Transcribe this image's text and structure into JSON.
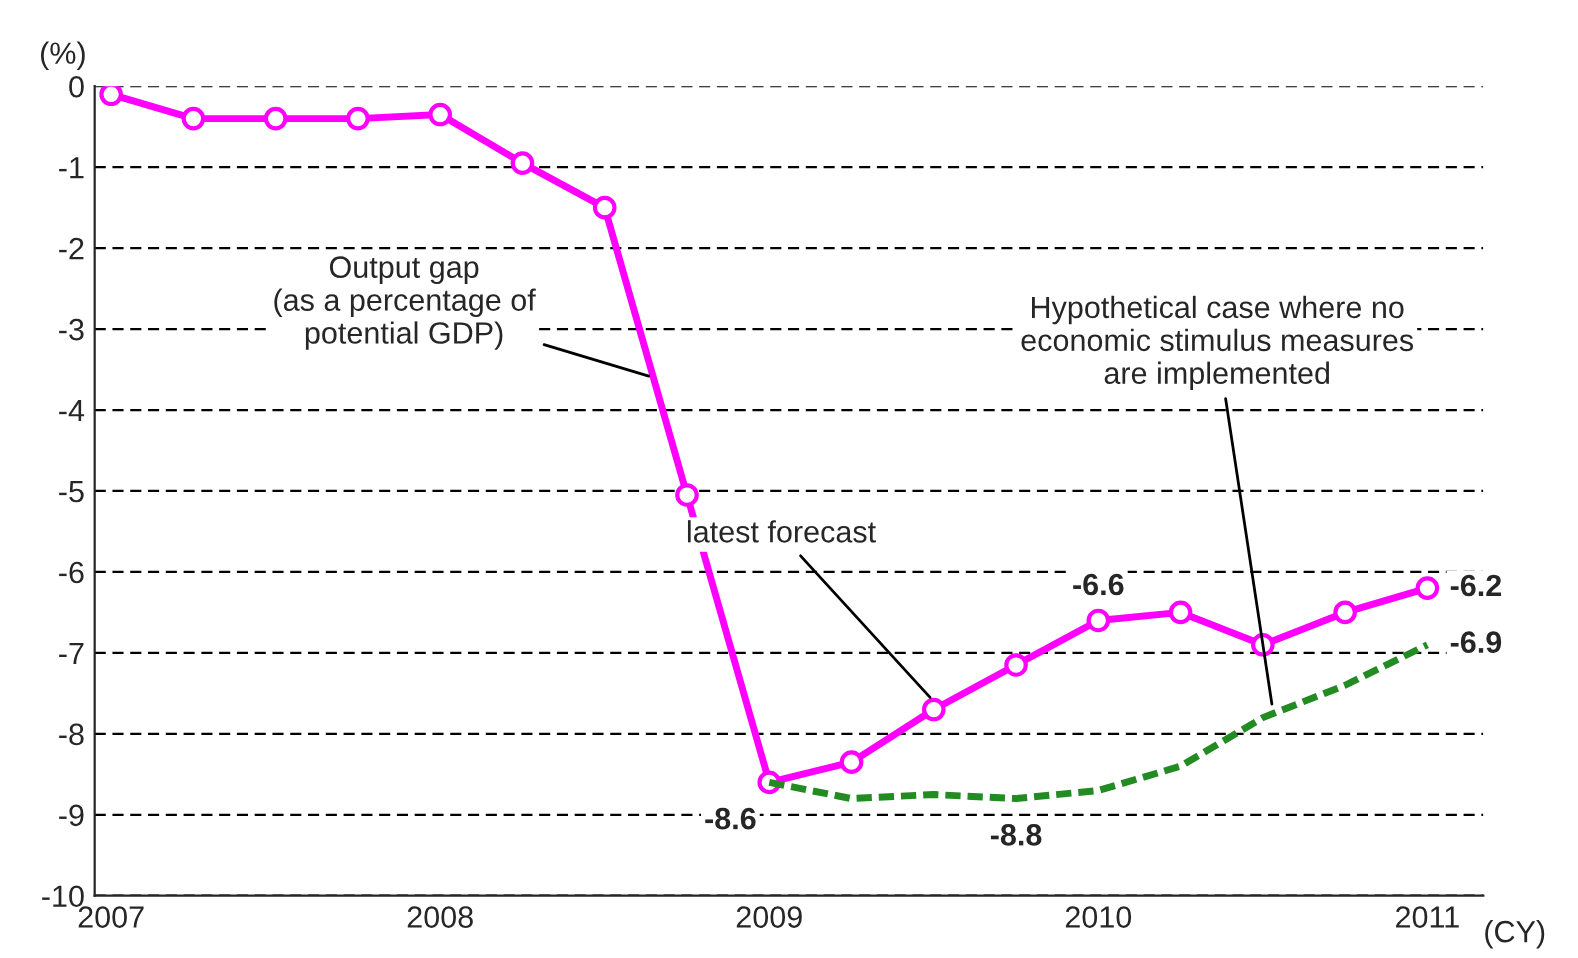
{
  "chart_data": {
    "type": "line",
    "ylabel": "(%)",
    "xlabel": "(CY)",
    "x": [
      2007.0,
      2007.25,
      2007.5,
      2007.75,
      2008.0,
      2008.25,
      2008.5,
      2008.75,
      2009.0,
      2009.25,
      2009.5,
      2009.75,
      2010.0,
      2010.25,
      2010.5,
      2010.75,
      2011.0
    ],
    "series": [
      {
        "color": "#ff00ff",
        "marker": "circle",
        "line_style": "solid",
        "values": [
          -0.1,
          -0.4,
          -0.4,
          -0.4,
          -0.35,
          -0.95,
          -1.5,
          -5.05,
          -8.6,
          -8.35,
          -7.7,
          -7.15,
          -6.6,
          -6.5,
          -6.9,
          -6.5,
          -6.2
        ],
        "value_labels": [
          null,
          null,
          null,
          null,
          null,
          null,
          null,
          null,
          "-8.6",
          null,
          null,
          null,
          "-6.6",
          null,
          null,
          null,
          "-6.2"
        ]
      },
      {
        "color": "#228b22",
        "marker": "none",
        "line_style": "dashed",
        "x": [
          2009.0,
          2009.25,
          2009.5,
          2009.75,
          2010.0,
          2010.25,
          2010.5,
          2010.75,
          2011.0
        ],
        "values": [
          -8.6,
          -8.8,
          -8.75,
          -8.8,
          -8.7,
          -8.4,
          -7.8,
          -7.4,
          -6.9
        ],
        "value_labels": [
          null,
          null,
          null,
          "-8.8",
          null,
          null,
          null,
          null,
          "-6.9"
        ]
      }
    ],
    "xlim": [
      2006.95,
      2011.17
    ],
    "xticks": [
      2007,
      2008,
      2009,
      2010,
      2011
    ],
    "ylim": [
      -10,
      0
    ],
    "yticks": [
      0,
      -1,
      -2,
      -3,
      -4,
      -5,
      -6,
      -7,
      -8,
      -9,
      -10
    ],
    "grid": "y",
    "annotations": [
      {
        "text": "Output gap\n(as a percentage of\npotential GDP)",
        "x": 2008.65,
        "y": -3.6
      },
      {
        "text": "latest forecast",
        "x": 2009.5,
        "y": -7.6
      },
      {
        "text": "Hypothetical case where no\neconomic stimulus measures\nare implemented",
        "x": 2010.53,
        "y": -7.7
      }
    ]
  }
}
